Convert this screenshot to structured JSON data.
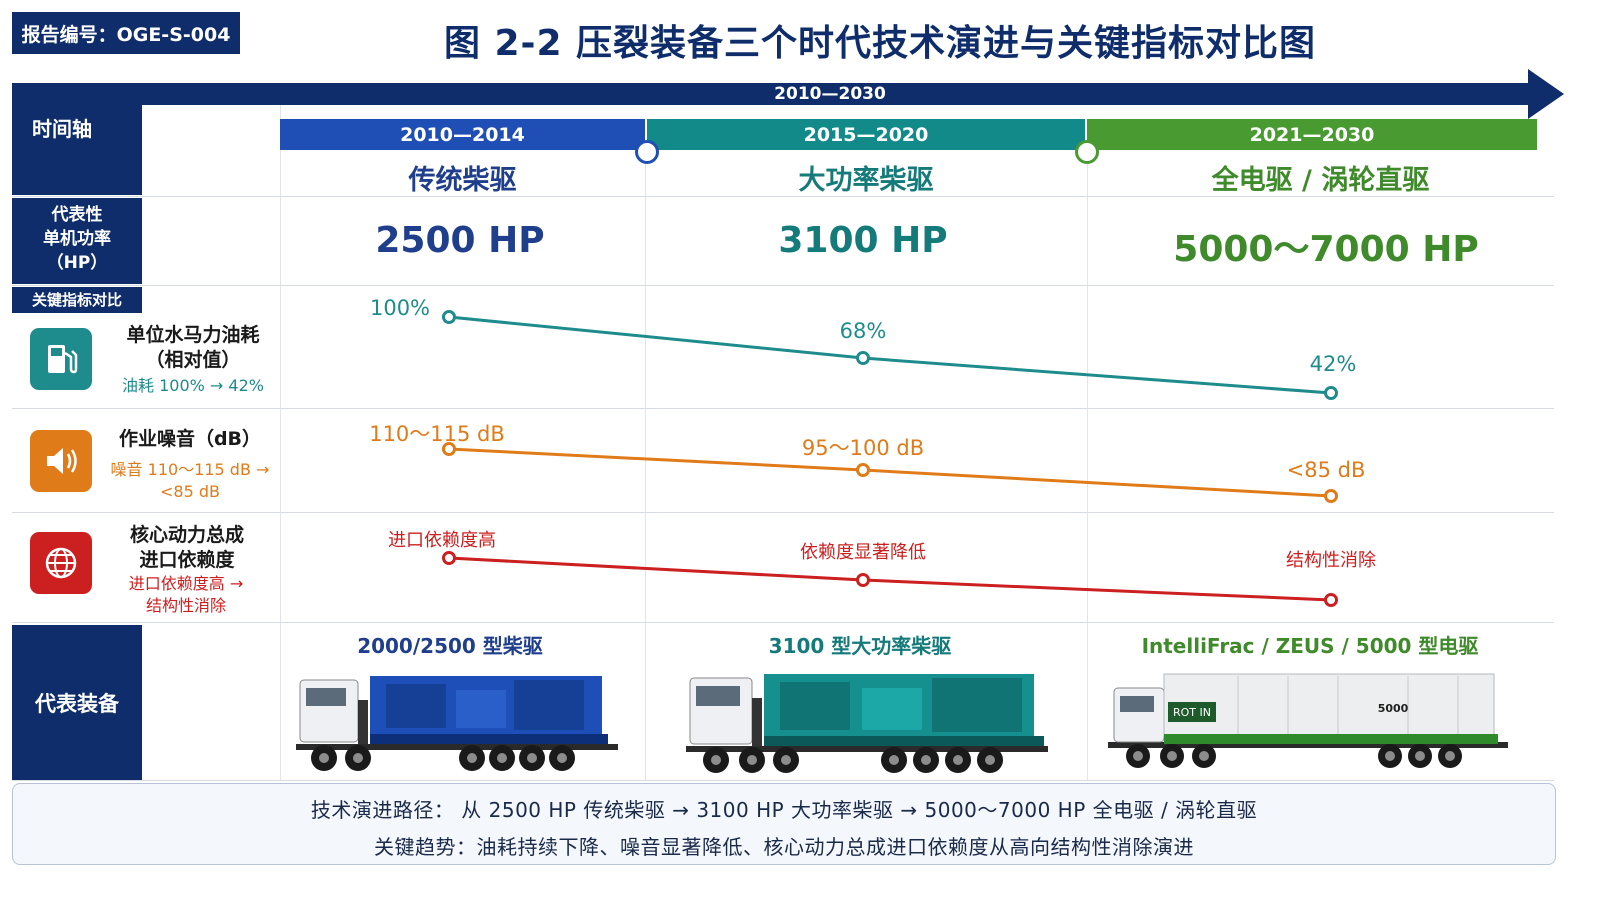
{
  "header": {
    "report_id": "报告编号：OGE-S-004",
    "title": "图 2-2  压裂装备三个时代技术演进与关键指标对比图"
  },
  "timeline": {
    "range": "2010—2030",
    "axis_label": "时间轴"
  },
  "eras": [
    {
      "years": "2010—2014",
      "name": "传统柴驱",
      "power": "2500 HP",
      "equipment": "2000/2500 型柴驱"
    },
    {
      "years": "2015—2020",
      "name": "大功率柴驱",
      "power": "3100 HP",
      "equipment": "3100 型大功率柴驱"
    },
    {
      "years": "2021—2030",
      "name": "全电驱 / 涡轮直驱",
      "power": "5000～7000 HP",
      "equipment": "IntelliFrac / ZEUS / 5000 型电驱"
    }
  ],
  "rows": {
    "power_label_1": "代表性",
    "power_label_2": "单机功率",
    "power_label_3": "（HP）",
    "indicators_label": "关键指标对比",
    "equipment_label": "代表装备"
  },
  "metrics": [
    {
      "name_1": "单位水马力油耗",
      "name_2": "（相对值）",
      "note_1": "油耗 100% → 42%",
      "note_2": "",
      "icon": "fuel-pump-icon",
      "color": "#1e8c8c",
      "labels": [
        "100%",
        "68%",
        "42%"
      ]
    },
    {
      "name_1": "作业噪音（dB）",
      "name_2": "",
      "note_1": "噪音 110～115 dB →",
      "note_2": "<85 dB",
      "icon": "speaker-icon",
      "color": "#e07b1a",
      "labels": [
        "110～115 dB",
        "95～100 dB",
        "<85 dB"
      ]
    },
    {
      "name_1": "核心动力总成",
      "name_2": "进口依赖度",
      "note_1": "进口依赖度高 →",
      "note_2": "结构性消除",
      "icon": "globe-icon",
      "color": "#cc1f1f",
      "labels": [
        "进口依赖度高",
        "依赖度显著降低",
        "结构性消除"
      ]
    }
  ],
  "truck_text": {
    "door_badge": "ROT IN",
    "body_badge": "5000"
  },
  "summary": {
    "line1": "技术演进路径：  从  2500 HP  传统柴驱  →  3100 HP  大功率柴驱  →  5000～7000 HP  全电驱  /  涡轮直驱",
    "line2": "关键趋势：油耗持续下降、噪音显著降低、核心动力总成进口依赖度从高向结构性消除演进"
  },
  "colors": {
    "navy": "#0f2d6b",
    "era1": "#1f4fb4",
    "era2": "#128a8a",
    "era3": "#4a9a32",
    "era1_text": "#1f3f8c",
    "era2_text": "#147a7a",
    "era3_text": "#3f8a2a"
  }
}
